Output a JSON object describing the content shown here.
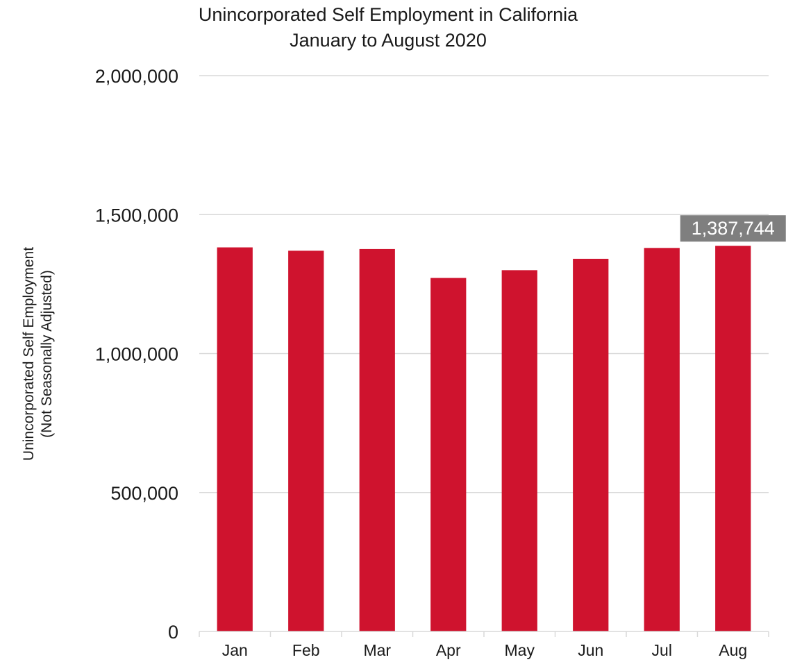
{
  "chart_data": {
    "type": "bar",
    "title": "Unincorporated Self Employment in California",
    "subtitle": "January to August 2020",
    "ylabel_line1": "Unincorporated Self Employment",
    "ylabel_line2": "(Not Seasonally Adjusted)",
    "xlabel": "",
    "categories": [
      "Jan",
      "Feb",
      "Mar",
      "Apr",
      "May",
      "Jun",
      "Jul",
      "Aug"
    ],
    "values": [
      1382000,
      1370000,
      1376000,
      1272000,
      1300000,
      1341000,
      1380000,
      1387744
    ],
    "ylim": [
      0,
      2000000
    ],
    "yticks": [
      0,
      500000,
      1000000,
      1500000,
      2000000
    ],
    "ytick_labels": [
      "0",
      "500,000",
      "1,000,000",
      "1,500,000",
      "2,000,000"
    ],
    "data_label": {
      "index": 7,
      "text": "1,387,744"
    },
    "grid": true,
    "colors": {
      "bar": "#cf132e",
      "label_bg": "#7f7f7f"
    }
  }
}
